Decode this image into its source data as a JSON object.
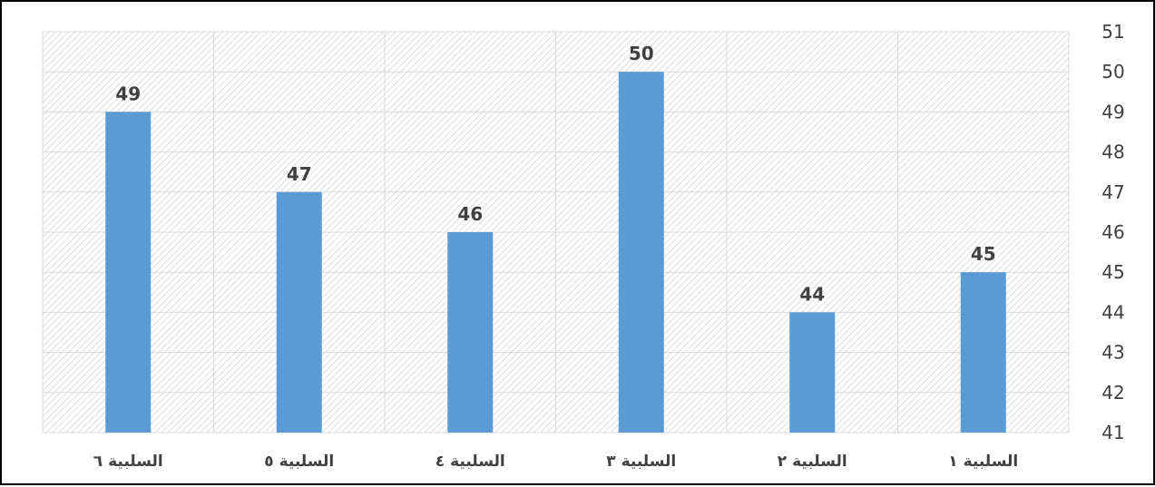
{
  "chart_data": {
    "type": "bar",
    "categories": [
      "السلبية ١",
      "السلبية ٢",
      "السلبية ٣",
      "السلبية ٤",
      "السلبية ٥",
      "السلبية ٦"
    ],
    "values": [
      45,
      44,
      50,
      46,
      47,
      49
    ],
    "data_labels": [
      "45",
      "44",
      "50",
      "46",
      "47",
      "49"
    ],
    "ylim": [
      41,
      51
    ],
    "yticks": [
      "41",
      "42",
      "43",
      "44",
      "45",
      "46",
      "47",
      "48",
      "49",
      "50",
      "51"
    ],
    "x_direction": "right-to-left",
    "y_axis_side": "right",
    "grid": true,
    "bar_color": "#5B9BD5",
    "plot_background": "hatched-light-gray",
    "title": "",
    "xlabel": "",
    "ylabel": ""
  }
}
